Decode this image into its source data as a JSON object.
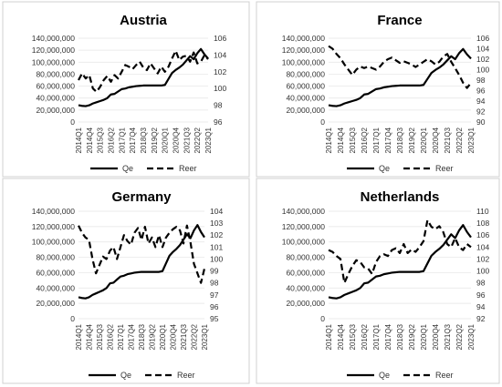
{
  "legend": {
    "qe_label": "Qe",
    "reer_label": "Reer"
  },
  "x_tick_labels": [
    "2014Q1",
    "2014Q4",
    "2015Q3",
    "2016Q2",
    "2017Q1",
    "2017Q4",
    "2018Q3",
    "2019Q2",
    "2020Q1",
    "2020Q4",
    "2021Q3",
    "2022Q2",
    "2023Q1"
  ],
  "chart_data": [
    {
      "type": "line",
      "title": "Austria",
      "categories": [
        "2014Q1",
        "2014Q2",
        "2014Q3",
        "2014Q4",
        "2015Q1",
        "2015Q2",
        "2015Q3",
        "2015Q4",
        "2016Q1",
        "2016Q2",
        "2016Q3",
        "2016Q4",
        "2017Q1",
        "2017Q2",
        "2017Q3",
        "2017Q4",
        "2018Q1",
        "2018Q2",
        "2018Q3",
        "2018Q4",
        "2019Q1",
        "2019Q2",
        "2019Q3",
        "2019Q4",
        "2020Q1",
        "2020Q2",
        "2020Q3",
        "2020Q4",
        "2021Q1",
        "2021Q2",
        "2021Q3",
        "2021Q4",
        "2022Q1",
        "2022Q2",
        "2022Q3",
        "2022Q4",
        "2023Q1"
      ],
      "y_left": {
        "min": 0,
        "max": 140000000,
        "step": 20000000,
        "ticks": [
          "0",
          "20,000,000",
          "40,000,000",
          "60,000,000",
          "80,000,000",
          "100,000,000",
          "120,000,000",
          "140,000,000"
        ]
      },
      "y_right": {
        "min": 96,
        "max": 106,
        "step": 2,
        "ticks": [
          "96",
          "98",
          "100",
          "102",
          "104",
          "106"
        ]
      },
      "series": [
        {
          "name": "Qe",
          "axis": "left",
          "style": "solid",
          "values": [
            28000000,
            27000000,
            26500000,
            28000000,
            31000000,
            33000000,
            35000000,
            37000000,
            40000000,
            46000000,
            47000000,
            51000000,
            55000000,
            56000000,
            58000000,
            59000000,
            60000000,
            60500000,
            61000000,
            61000000,
            61000000,
            61000000,
            61000000,
            61000000,
            62000000,
            72000000,
            82000000,
            87000000,
            91000000,
            96000000,
            103000000,
            110000000,
            105000000,
            115000000,
            122000000,
            113000000,
            106000000
          ]
        },
        {
          "name": "Reer",
          "axis": "right",
          "style": "dashed",
          "values": [
            101.0,
            101.8,
            101.2,
            101.6,
            100.0,
            99.6,
            100.2,
            101.0,
            101.5,
            100.8,
            101.6,
            101.2,
            102.0,
            102.8,
            102.6,
            102.3,
            102.8,
            103.2,
            102.5,
            102.2,
            103.0,
            102.4,
            101.8,
            102.6,
            102.0,
            102.6,
            103.6,
            104.5,
            103.4,
            103.8,
            103.9,
            103.2,
            104.3,
            103.0,
            103.2,
            104.0,
            103.5
          ]
        }
      ]
    },
    {
      "type": "line",
      "title": "France",
      "categories": [
        "2014Q1",
        "2014Q2",
        "2014Q3",
        "2014Q4",
        "2015Q1",
        "2015Q2",
        "2015Q3",
        "2015Q4",
        "2016Q1",
        "2016Q2",
        "2016Q3",
        "2016Q4",
        "2017Q1",
        "2017Q2",
        "2017Q3",
        "2017Q4",
        "2018Q1",
        "2018Q2",
        "2018Q3",
        "2018Q4",
        "2019Q1",
        "2019Q2",
        "2019Q3",
        "2019Q4",
        "2020Q1",
        "2020Q2",
        "2020Q3",
        "2020Q4",
        "2021Q1",
        "2021Q2",
        "2021Q3",
        "2021Q4",
        "2022Q1",
        "2022Q2",
        "2022Q3",
        "2022Q4",
        "2023Q1"
      ],
      "y_left": {
        "min": 0,
        "max": 140000000,
        "step": 20000000,
        "ticks": [
          "0",
          "20,000,000",
          "40,000,000",
          "60,000,000",
          "80,000,000",
          "100,000,000",
          "120,000,000",
          "140,000,000"
        ]
      },
      "y_right": {
        "min": 90,
        "max": 106,
        "step": 2,
        "ticks": [
          "90",
          "92",
          "94",
          "96",
          "98",
          "100",
          "102",
          "104",
          "106"
        ]
      },
      "series": [
        {
          "name": "Qe",
          "axis": "left",
          "style": "solid",
          "values": [
            28000000,
            27000000,
            26500000,
            28000000,
            31000000,
            33000000,
            35000000,
            37000000,
            40000000,
            46000000,
            47000000,
            51000000,
            55000000,
            56000000,
            58000000,
            59000000,
            60000000,
            60500000,
            61000000,
            61000000,
            61000000,
            61000000,
            61000000,
            61000000,
            62000000,
            72000000,
            82000000,
            87000000,
            91000000,
            96000000,
            103000000,
            110000000,
            105000000,
            115000000,
            122000000,
            113000000,
            106000000
          ]
        },
        {
          "name": "Reer",
          "axis": "right",
          "style": "dashed",
          "values": [
            104.5,
            104.0,
            103.0,
            102.2,
            101.0,
            100.0,
            99.0,
            100.0,
            100.6,
            100.3,
            100.6,
            100.3,
            100.0,
            100.6,
            101.5,
            102.0,
            102.3,
            101.8,
            101.3,
            101.6,
            101.3,
            101.0,
            100.5,
            101.0,
            101.5,
            102.0,
            101.6,
            101.0,
            101.5,
            102.5,
            103.0,
            101.5,
            100.3,
            99.0,
            97.5,
            96.5,
            97.5
          ]
        }
      ]
    },
    {
      "type": "line",
      "title": "Germany",
      "categories": [
        "2014Q1",
        "2014Q2",
        "2014Q3",
        "2014Q4",
        "2015Q1",
        "2015Q2",
        "2015Q3",
        "2015Q4",
        "2016Q1",
        "2016Q2",
        "2016Q3",
        "2016Q4",
        "2017Q1",
        "2017Q2",
        "2017Q3",
        "2017Q4",
        "2018Q1",
        "2018Q2",
        "2018Q3",
        "2018Q4",
        "2019Q1",
        "2019Q2",
        "2019Q3",
        "2019Q4",
        "2020Q1",
        "2020Q2",
        "2020Q3",
        "2020Q4",
        "2021Q1",
        "2021Q2",
        "2021Q3",
        "2021Q4",
        "2022Q1",
        "2022Q2",
        "2022Q3",
        "2022Q4",
        "2023Q1"
      ],
      "y_left": {
        "min": 0,
        "max": 140000000,
        "step": 20000000,
        "ticks": [
          "0",
          "20,000,000",
          "40,000,000",
          "60,000,000",
          "80,000,000",
          "100,000,000",
          "120,000,000",
          "140,000,000"
        ]
      },
      "y_right": {
        "min": 95,
        "max": 104,
        "step": 1,
        "ticks": [
          "95",
          "96",
          "97",
          "98",
          "99",
          "100",
          "101",
          "102",
          "103",
          "104"
        ]
      },
      "series": [
        {
          "name": "Qe",
          "axis": "left",
          "style": "solid",
          "values": [
            28000000,
            27000000,
            26500000,
            28000000,
            31000000,
            33000000,
            35000000,
            37000000,
            40000000,
            46000000,
            47000000,
            51000000,
            55000000,
            56000000,
            58000000,
            59000000,
            60000000,
            60500000,
            61000000,
            61000000,
            61000000,
            61000000,
            61000000,
            61000000,
            62000000,
            72000000,
            82000000,
            87000000,
            91000000,
            96000000,
            103000000,
            110000000,
            105000000,
            115000000,
            122000000,
            113000000,
            106000000
          ]
        },
        {
          "name": "Reer",
          "axis": "right",
          "style": "dashed",
          "values": [
            102.8,
            102.2,
            101.8,
            101.6,
            100.0,
            98.8,
            99.5,
            100.2,
            100.0,
            100.7,
            101.0,
            100.0,
            101.0,
            102.0,
            101.5,
            101.2,
            102.2,
            102.6,
            101.6,
            102.7,
            101.3,
            101.8,
            101.0,
            102.0,
            101.0,
            101.8,
            102.2,
            102.5,
            102.7,
            102.4,
            101.3,
            102.8,
            101.4,
            99.6,
            98.8,
            98.0,
            99.2
          ]
        }
      ]
    },
    {
      "type": "line",
      "title": "Netherlands",
      "categories": [
        "2014Q1",
        "2014Q2",
        "2014Q3",
        "2014Q4",
        "2015Q1",
        "2015Q2",
        "2015Q3",
        "2015Q4",
        "2016Q1",
        "2016Q2",
        "2016Q3",
        "2016Q4",
        "2017Q1",
        "2017Q2",
        "2017Q3",
        "2017Q4",
        "2018Q1",
        "2018Q2",
        "2018Q3",
        "2018Q4",
        "2019Q1",
        "2019Q2",
        "2019Q3",
        "2019Q4",
        "2020Q1",
        "2020Q2",
        "2020Q3",
        "2020Q4",
        "2021Q1",
        "2021Q2",
        "2021Q3",
        "2021Q4",
        "2022Q1",
        "2022Q2",
        "2022Q3",
        "2022Q4",
        "2023Q1"
      ],
      "y_left": {
        "min": 0,
        "max": 140000000,
        "step": 20000000,
        "ticks": [
          "0",
          "20,000,000",
          "40,000,000",
          "60,000,000",
          "80,000,000",
          "100,000,000",
          "120,000,000",
          "140,000,000"
        ]
      },
      "y_right": {
        "min": 92,
        "max": 110,
        "step": 2,
        "ticks": [
          "92",
          "94",
          "96",
          "98",
          "100",
          "102",
          "104",
          "106",
          "108",
          "110"
        ]
      },
      "series": [
        {
          "name": "Qe",
          "axis": "left",
          "style": "solid",
          "values": [
            28000000,
            27000000,
            26500000,
            28000000,
            31000000,
            33000000,
            35000000,
            37000000,
            40000000,
            46000000,
            47000000,
            51000000,
            55000000,
            56000000,
            58000000,
            59000000,
            60000000,
            60500000,
            61000000,
            61000000,
            61000000,
            61000000,
            61000000,
            61000000,
            62000000,
            72000000,
            82000000,
            87000000,
            91000000,
            96000000,
            103000000,
            110000000,
            105000000,
            115000000,
            122000000,
            113000000,
            106000000
          ]
        },
        {
          "name": "Reer",
          "axis": "right",
          "style": "dashed",
          "values": [
            103.5,
            103.2,
            102.5,
            102.0,
            98.0,
            99.5,
            100.8,
            101.8,
            101.5,
            100.6,
            100.4,
            99.5,
            101.5,
            102.5,
            102.8,
            102.5,
            103.5,
            103.8,
            103.0,
            104.5,
            103.0,
            103.6,
            103.2,
            104.0,
            105.0,
            108.5,
            107.4,
            107.0,
            107.5,
            106.5,
            104.5,
            104.0,
            105.5,
            104.0,
            103.5,
            104.5,
            104.0
          ]
        }
      ]
    }
  ]
}
